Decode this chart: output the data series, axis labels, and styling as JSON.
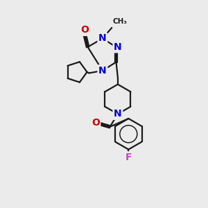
{
  "bg_color": "#ebebeb",
  "bond_color": "#1a1a1a",
  "N_color": "#0000cc",
  "O_color": "#cc0000",
  "F_color": "#cc44cc",
  "line_width": 1.6,
  "font_size_atom": 10,
  "fig_w": 3.0,
  "fig_h": 3.0,
  "dpi": 100,
  "xlim": [
    0,
    10
  ],
  "ylim": [
    0,
    10
  ]
}
